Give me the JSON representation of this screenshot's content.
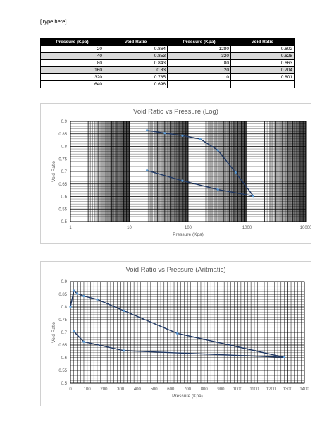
{
  "document": {
    "header": "[Type here]"
  },
  "table": {
    "headers": [
      "Pressure (Kpa)",
      "Void Ratio",
      "Pressure (Kpa)",
      "Void Ratio"
    ],
    "rows": [
      [
        "20",
        "0.864",
        "1280",
        "0.602"
      ],
      [
        "40",
        "0.853",
        "320",
        "0.628"
      ],
      [
        "80",
        "0.843",
        "80",
        "0.663"
      ],
      [
        "160",
        "0.83",
        "20",
        "0.704"
      ],
      [
        "320",
        "0.785",
        "0",
        "0.801"
      ],
      [
        "640",
        "0.696",
        "",
        ""
      ]
    ]
  },
  "chart_data": [
    {
      "type": "line",
      "title": "Void Ratio vs Pressure (Log)",
      "xlabel": "Pressure (Kpa)",
      "ylabel": "Void Ratio",
      "xscale": "log",
      "xlim": [
        1,
        10000
      ],
      "ylim": [
        0.5,
        0.9
      ],
      "x_ticks": [
        "1",
        "10",
        "100",
        "1000",
        "10000"
      ],
      "y_ticks": [
        "0.5",
        "0.55",
        "0.6",
        "0.65",
        "0.7",
        "0.75",
        "0.8",
        "0.85",
        "0.9"
      ],
      "grid": true,
      "legend": "none",
      "line_color": "#1f3864",
      "marker_color": "#5b9bd5",
      "series": [
        {
          "x": [
            20,
            40,
            80,
            160,
            320,
            640,
            1280,
            320,
            80,
            20
          ],
          "y": [
            0.864,
            0.853,
            0.843,
            0.83,
            0.785,
            0.696,
            0.602,
            0.628,
            0.663,
            0.704
          ]
        }
      ]
    },
    {
      "type": "line",
      "title": "Void Ratio vs Pressure (Aritmatic)",
      "xlabel": "Pressure (Kpa)",
      "ylabel": "Void Ratio",
      "xscale": "linear",
      "xlim": [
        0,
        1400
      ],
      "ylim": [
        0.5,
        0.9
      ],
      "x_ticks": [
        "0",
        "100",
        "200",
        "300",
        "400",
        "500",
        "600",
        "700",
        "800",
        "900",
        "1000",
        "1100",
        "1200",
        "1300",
        "1400"
      ],
      "y_ticks": [
        "0.5",
        "0.55",
        "0.6",
        "0.65",
        "0.7",
        "0.75",
        "0.8",
        "0.85",
        "0.9"
      ],
      "grid": true,
      "legend": "none",
      "line_color": "#1f3864",
      "marker_color": "#5b9bd5",
      "series": [
        {
          "x": [
            0,
            20,
            40,
            80,
            160,
            320,
            640,
            1280,
            320,
            80,
            20
          ],
          "y": [
            0.801,
            0.864,
            0.853,
            0.843,
            0.83,
            0.785,
            0.696,
            0.602,
            0.628,
            0.663,
            0.704
          ]
        }
      ]
    }
  ]
}
